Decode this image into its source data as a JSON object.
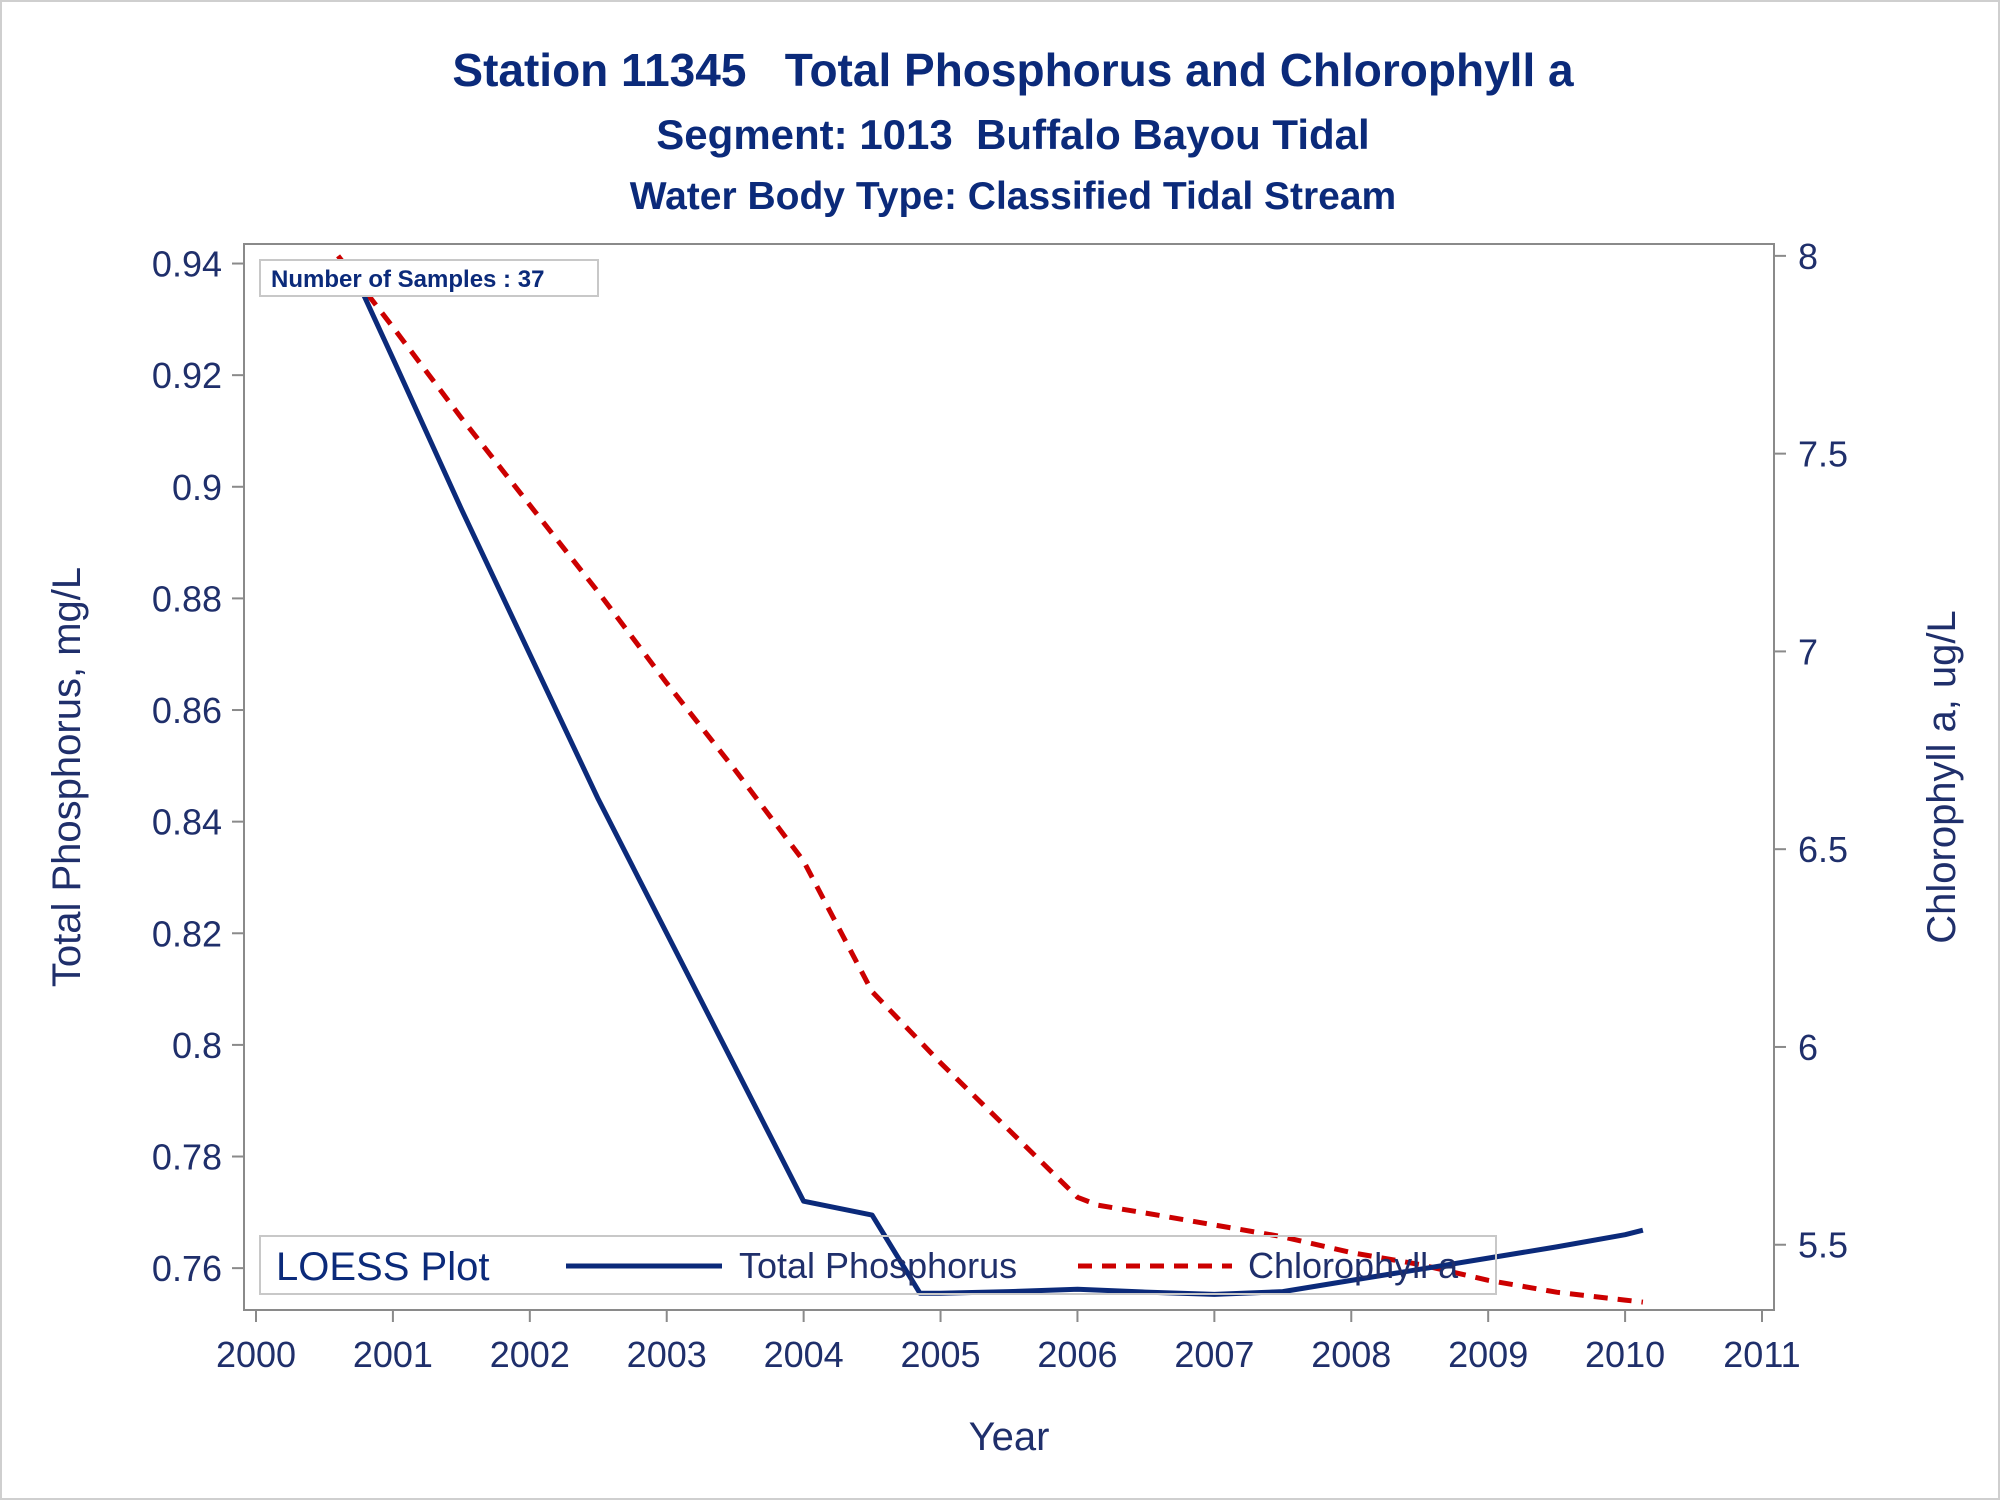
{
  "colors": {
    "text": "#1f2f6b",
    "title": "#0b2a7a",
    "axis": "#8a8a8a",
    "phosphorus": "#0b2a7a",
    "chlorophyll": "#cc0000"
  },
  "chart_data": {
    "type": "line",
    "title": "Station 11345   Total Phosphorus and Chlorophyll a",
    "subtitle": "Segment: 1013  Buffalo Bayou Tidal",
    "subtitle2": "Water Body Type: Classified Tidal Stream",
    "xlabel": "Year",
    "ylabel_left": "Total Phosphorus, mg/L",
    "ylabel_right": "Chlorophyll a, ug/L",
    "xlim": [
      2000,
      2011
    ],
    "ylim_left": [
      0.7525,
      0.9435
    ],
    "ylim_right": [
      5.335,
      8.03
    ],
    "x_ticks": [
      "2000",
      "2001",
      "2002",
      "2003",
      "2004",
      "2005",
      "2006",
      "2007",
      "2008",
      "2009",
      "2010",
      "2011"
    ],
    "y_ticks_left": [
      "0.76",
      "0.78",
      "0.8",
      "0.82",
      "0.84",
      "0.86",
      "0.88",
      "0.9",
      "0.92",
      "0.94"
    ],
    "y_ticks_right": [
      "5.5",
      "6",
      "6.5",
      "7",
      "7.5",
      "8"
    ],
    "inset_label": "Number of Samples : 37",
    "legend": {
      "title": "LOESS Plot",
      "placement": "bottom-inside",
      "entries": [
        "Total Phosphorus",
        "Chlorophyll a"
      ]
    },
    "series": [
      {
        "name": "Total Phosphorus",
        "axis": "left",
        "style": "solid",
        "x": [
          2000.7,
          2001.0,
          2001.5,
          2002.0,
          2002.5,
          2003.0,
          2003.5,
          2004.0,
          2004.5,
          2004.85,
          2005.0,
          2005.5,
          2006.0,
          2006.5,
          2007.0,
          2007.5,
          2008.0,
          2008.5,
          2009.0,
          2009.5,
          2010.0,
          2010.13
        ],
        "y": [
          0.939,
          0.923,
          0.896,
          0.87,
          0.844,
          0.82,
          0.796,
          0.772,
          0.7695,
          0.7555,
          0.7555,
          0.7558,
          0.7562,
          0.7557,
          0.7553,
          0.7558,
          0.7578,
          0.7598,
          0.7618,
          0.7638,
          0.766,
          0.7668
        ]
      },
      {
        "name": "Chlorophyll a",
        "axis": "right",
        "style": "dashed",
        "x": [
          2000.6,
          2001.0,
          2001.5,
          2002.0,
          2002.5,
          2003.0,
          2003.5,
          2004.0,
          2004.5,
          2005.0,
          2005.5,
          2006.0,
          2006.15,
          2006.5,
          2007.0,
          2007.5,
          2008.0,
          2008.5,
          2009.0,
          2009.5,
          2010.0,
          2010.13
        ],
        "y": [
          8.0,
          7.82,
          7.59,
          7.37,
          7.15,
          6.92,
          6.7,
          6.47,
          6.14,
          5.96,
          5.79,
          5.62,
          5.6,
          5.58,
          5.55,
          5.52,
          5.48,
          5.45,
          5.41,
          5.38,
          5.36,
          5.355
        ]
      }
    ]
  }
}
